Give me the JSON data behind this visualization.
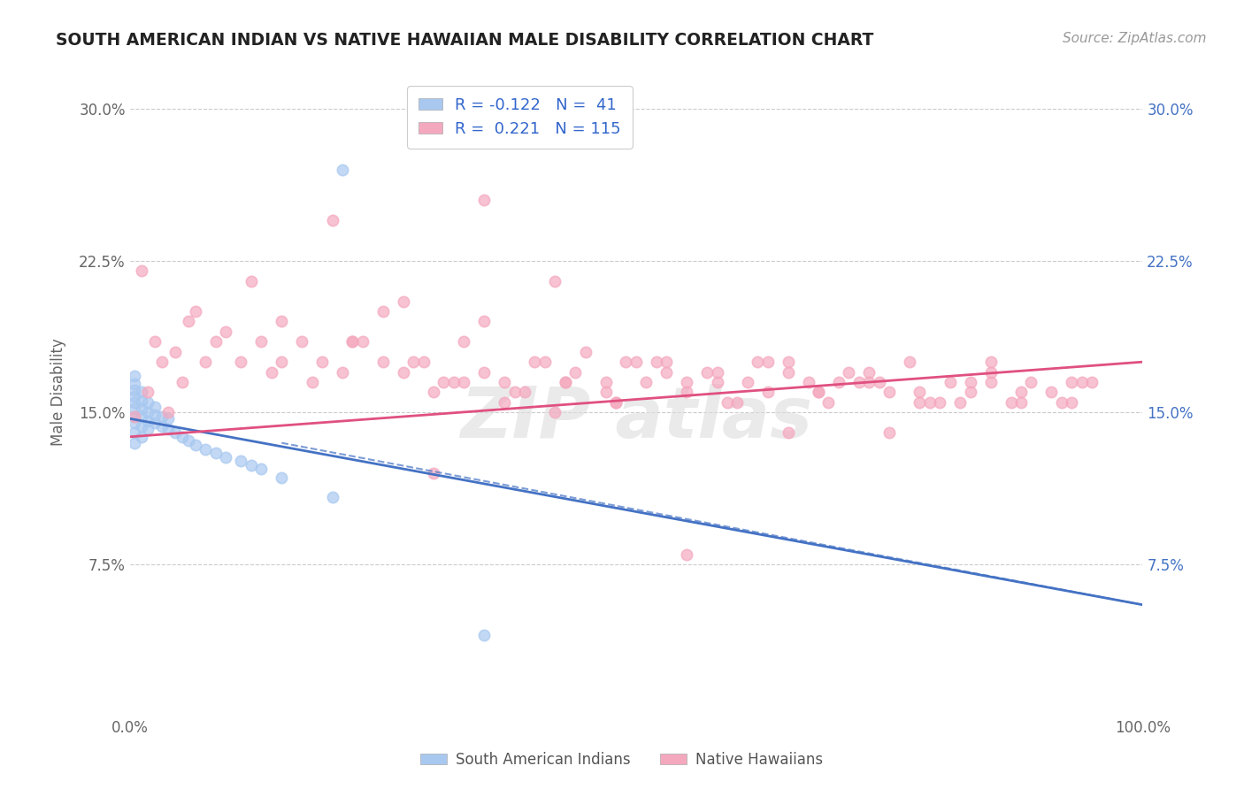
{
  "title": "SOUTH AMERICAN INDIAN VS NATIVE HAWAIIAN MALE DISABILITY CORRELATION CHART",
  "source": "Source: ZipAtlas.com",
  "ylabel": "Male Disability",
  "xlim": [
    0.0,
    1.0
  ],
  "ylim": [
    0.0,
    0.32
  ],
  "yticks": [
    0.075,
    0.15,
    0.225,
    0.3
  ],
  "ytick_labels": [
    "7.5%",
    "15.0%",
    "22.5%",
    "30.0%"
  ],
  "xtick_labels": [
    "0.0%",
    "100.0%"
  ],
  "blue_color": "#A8C8F0",
  "pink_color": "#F4A8BE",
  "blue_line_color": "#4472C4",
  "pink_line_color": "#E05080",
  "watermark": "ZIP atlas",
  "background_color": "#FFFFFF",
  "grid_color": "#CCCCCC",
  "blue_scatter_x": [
    0.005,
    0.005,
    0.005,
    0.005,
    0.005,
    0.005,
    0.005,
    0.005,
    0.005,
    0.005,
    0.012,
    0.012,
    0.012,
    0.012,
    0.012,
    0.012,
    0.018,
    0.018,
    0.018,
    0.018,
    0.025,
    0.025,
    0.025,
    0.032,
    0.032,
    0.038,
    0.038,
    0.045,
    0.052,
    0.058,
    0.065,
    0.075,
    0.085,
    0.095,
    0.11,
    0.12,
    0.13,
    0.15,
    0.2,
    0.21,
    0.35
  ],
  "blue_scatter_y": [
    0.135,
    0.14,
    0.145,
    0.148,
    0.152,
    0.155,
    0.158,
    0.161,
    0.164,
    0.168,
    0.138,
    0.143,
    0.148,
    0.152,
    0.156,
    0.16,
    0.142,
    0.146,
    0.15,
    0.155,
    0.145,
    0.149,
    0.153,
    0.143,
    0.148,
    0.142,
    0.147,
    0.14,
    0.138,
    0.136,
    0.134,
    0.132,
    0.13,
    0.128,
    0.126,
    0.124,
    0.122,
    0.118,
    0.108,
    0.27,
    0.04
  ],
  "pink_scatter_x": [
    0.005,
    0.012,
    0.018,
    0.025,
    0.032,
    0.038,
    0.045,
    0.052,
    0.058,
    0.065,
    0.075,
    0.085,
    0.095,
    0.11,
    0.12,
    0.13,
    0.14,
    0.15,
    0.17,
    0.19,
    0.21,
    0.23,
    0.25,
    0.27,
    0.29,
    0.31,
    0.33,
    0.35,
    0.37,
    0.39,
    0.41,
    0.43,
    0.45,
    0.47,
    0.49,
    0.51,
    0.53,
    0.55,
    0.57,
    0.59,
    0.61,
    0.63,
    0.65,
    0.67,
    0.69,
    0.71,
    0.73,
    0.75,
    0.77,
    0.79,
    0.81,
    0.83,
    0.85,
    0.87,
    0.89,
    0.91,
    0.93,
    0.95,
    0.3,
    0.35,
    0.2,
    0.25,
    0.4,
    0.47,
    0.52,
    0.6,
    0.7,
    0.8,
    0.35,
    0.42,
    0.5,
    0.58,
    0.65,
    0.72,
    0.78,
    0.85,
    0.92,
    0.22,
    0.28,
    0.33,
    0.38,
    0.44,
    0.48,
    0.55,
    0.62,
    0.68,
    0.74,
    0.82,
    0.88,
    0.94,
    0.15,
    0.18,
    0.22,
    0.27,
    0.32,
    0.37,
    0.43,
    0.48,
    0.53,
    0.58,
    0.63,
    0.68,
    0.73,
    0.78,
    0.83,
    0.88,
    0.93,
    0.3,
    0.42,
    0.55,
    0.65,
    0.75,
    0.85
  ],
  "pink_scatter_y": [
    0.148,
    0.22,
    0.16,
    0.185,
    0.175,
    0.15,
    0.18,
    0.165,
    0.195,
    0.2,
    0.175,
    0.185,
    0.19,
    0.175,
    0.215,
    0.185,
    0.17,
    0.195,
    0.185,
    0.175,
    0.17,
    0.185,
    0.175,
    0.205,
    0.175,
    0.165,
    0.185,
    0.195,
    0.165,
    0.16,
    0.175,
    0.165,
    0.18,
    0.16,
    0.175,
    0.165,
    0.175,
    0.16,
    0.17,
    0.155,
    0.165,
    0.16,
    0.175,
    0.165,
    0.155,
    0.17,
    0.165,
    0.16,
    0.175,
    0.155,
    0.165,
    0.16,
    0.17,
    0.155,
    0.165,
    0.16,
    0.155,
    0.165,
    0.16,
    0.17,
    0.245,
    0.2,
    0.175,
    0.165,
    0.175,
    0.155,
    0.165,
    0.155,
    0.255,
    0.215,
    0.175,
    0.17,
    0.17,
    0.165,
    0.16,
    0.175,
    0.155,
    0.185,
    0.175,
    0.165,
    0.16,
    0.17,
    0.155,
    0.165,
    0.175,
    0.16,
    0.165,
    0.155,
    0.16,
    0.165,
    0.175,
    0.165,
    0.185,
    0.17,
    0.165,
    0.155,
    0.165,
    0.155,
    0.17,
    0.165,
    0.175,
    0.16,
    0.17,
    0.155,
    0.165,
    0.155,
    0.165,
    0.12,
    0.15,
    0.08,
    0.14,
    0.14,
    0.165
  ],
  "blue_trendline": [
    0.0,
    1.0
  ],
  "blue_trend_y": [
    0.147,
    0.055
  ],
  "pink_trendline": [
    0.0,
    1.0
  ],
  "pink_trend_y": [
    0.138,
    0.175
  ]
}
